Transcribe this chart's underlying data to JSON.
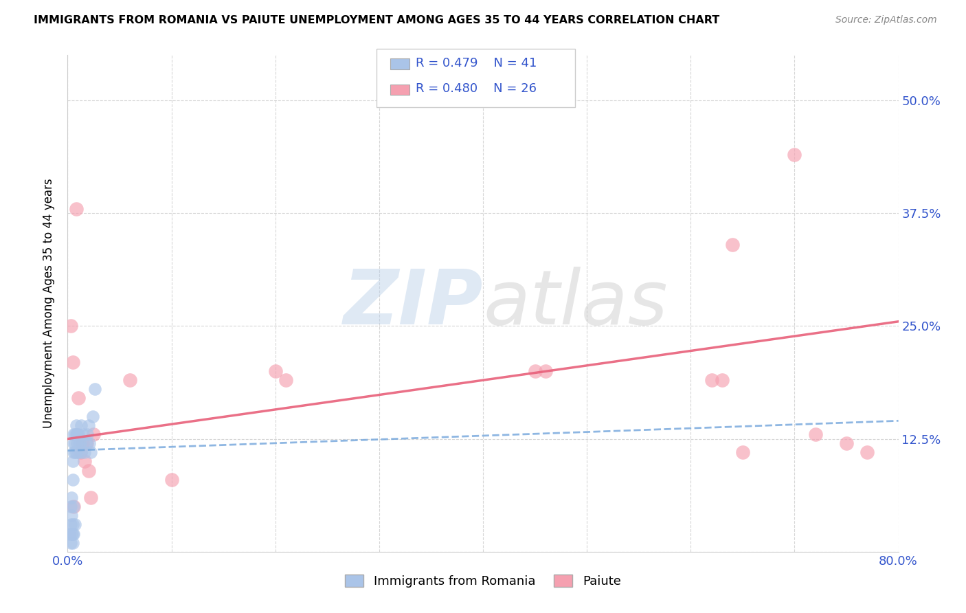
{
  "title": "IMMIGRANTS FROM ROMANIA VS PAIUTE UNEMPLOYMENT AMONG AGES 35 TO 44 YEARS CORRELATION CHART",
  "source": "Source: ZipAtlas.com",
  "ylabel": "Unemployment Among Ages 35 to 44 years",
  "xlim": [
    0.0,
    0.8
  ],
  "ylim": [
    0.0,
    0.55
  ],
  "x_ticks": [
    0.0,
    0.1,
    0.2,
    0.3,
    0.4,
    0.5,
    0.6,
    0.7,
    0.8
  ],
  "y_ticks": [
    0.0,
    0.125,
    0.25,
    0.375,
    0.5
  ],
  "grid_color": "#cccccc",
  "background_color": "#ffffff",
  "legend_R1": "0.479",
  "legend_N1": "41",
  "legend_R2": "0.480",
  "legend_N2": "26",
  "romania_color": "#aac4e8",
  "paiute_color": "#f5a0b0",
  "romania_line_color": "#7aaadd",
  "paiute_line_color": "#e8607a",
  "romania_scatter_x": [
    0.002,
    0.003,
    0.003,
    0.003,
    0.004,
    0.004,
    0.004,
    0.005,
    0.005,
    0.005,
    0.005,
    0.005,
    0.006,
    0.006,
    0.006,
    0.006,
    0.006,
    0.007,
    0.007,
    0.007,
    0.007,
    0.008,
    0.008,
    0.008,
    0.009,
    0.009,
    0.01,
    0.01,
    0.011,
    0.012,
    0.013,
    0.013,
    0.015,
    0.016,
    0.018,
    0.019,
    0.02,
    0.021,
    0.022,
    0.024,
    0.026
  ],
  "romania_scatter_y": [
    0.02,
    0.01,
    0.03,
    0.05,
    0.02,
    0.04,
    0.06,
    0.01,
    0.02,
    0.03,
    0.08,
    0.1,
    0.02,
    0.05,
    0.11,
    0.12,
    0.13,
    0.03,
    0.11,
    0.12,
    0.13,
    0.11,
    0.13,
    0.14,
    0.12,
    0.13,
    0.11,
    0.13,
    0.12,
    0.12,
    0.11,
    0.14,
    0.13,
    0.11,
    0.12,
    0.13,
    0.14,
    0.12,
    0.11,
    0.15,
    0.18
  ],
  "paiute_scatter_x": [
    0.003,
    0.005,
    0.006,
    0.008,
    0.01,
    0.012,
    0.014,
    0.016,
    0.018,
    0.02,
    0.022,
    0.025,
    0.06,
    0.1,
    0.2,
    0.21,
    0.45,
    0.46,
    0.62,
    0.63,
    0.64,
    0.65,
    0.7,
    0.72,
    0.75,
    0.77
  ],
  "paiute_scatter_y": [
    0.25,
    0.21,
    0.05,
    0.38,
    0.17,
    0.11,
    0.12,
    0.1,
    0.12,
    0.09,
    0.06,
    0.13,
    0.19,
    0.08,
    0.2,
    0.19,
    0.2,
    0.2,
    0.19,
    0.19,
    0.34,
    0.11,
    0.44,
    0.13,
    0.12,
    0.11
  ],
  "romania_trend_x": [
    0.0,
    0.8
  ],
  "romania_trend_y": [
    0.112,
    0.145
  ],
  "paiute_trend_x": [
    0.0,
    0.8
  ],
  "paiute_trend_y": [
    0.125,
    0.255
  ]
}
